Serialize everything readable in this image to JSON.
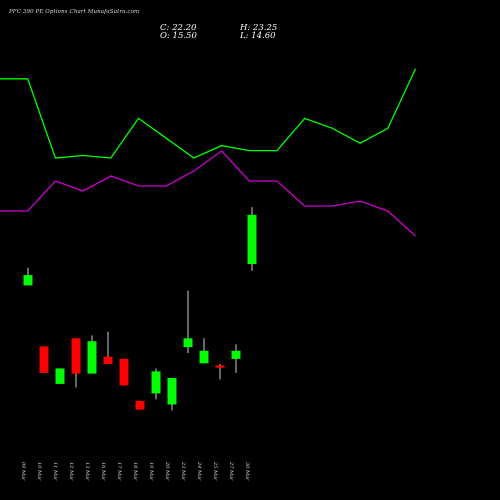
{
  "header": {
    "title": "PFC 390 PE Options Chart MunafaSutra.com",
    "close": "C: 22.20",
    "open": "O: 15.50",
    "high": "H: 23.25",
    "low": "L: 14.60"
  },
  "chart_data": {
    "type": "candlestick",
    "categories": [
      "09 Mar",
      "10 Mar",
      "11 Mar",
      "12 Mar",
      "13 Mar",
      "16 Mar",
      "17 Mar",
      "18 Mar",
      "19 Mar",
      "20 Mar",
      "23 Mar",
      "24 Mar",
      "25 Mar",
      "27 Mar",
      "30 Mar"
    ],
    "candles": [
      {
        "date": "09 Mar",
        "open": 12.6,
        "high": 15.0,
        "low": 12.6,
        "close": 14.0
      },
      {
        "date": "10 Mar",
        "open": 4.3,
        "high": 4.3,
        "low": 0.7,
        "close": 0.7
      },
      {
        "date": "11 Mar",
        "open": -0.8,
        "high": 1.3,
        "low": -0.8,
        "close": 1.3
      },
      {
        "date": "12 Mar",
        "open": 5.4,
        "high": 5.4,
        "low": -1.3,
        "close": 0.6
      },
      {
        "date": "13 Mar",
        "open": 0.6,
        "high": 5.8,
        "low": 0.6,
        "close": 5.0
      },
      {
        "date": "16 Mar",
        "open": 2.9,
        "high": 6.3,
        "low": 1.9,
        "close": 1.9
      },
      {
        "date": "17 Mar",
        "open": 2.6,
        "high": 2.6,
        "low": -1.0,
        "close": -1.0
      },
      {
        "date": "18 Mar",
        "open": -3.1,
        "high": -3.1,
        "low": -4.3,
        "close": -4.3
      },
      {
        "date": "19 Mar",
        "open": -2.1,
        "high": 1.3,
        "low": -2.9,
        "close": 0.9
      },
      {
        "date": "20 Mar",
        "open": -3.6,
        "high": 0.0,
        "low": -4.4,
        "close": 0.0
      },
      {
        "date": "23 Mar",
        "open": 4.2,
        "high": 11.9,
        "low": 3.4,
        "close": 5.4
      },
      {
        "date": "24 Mar",
        "open": 2.0,
        "high": 5.4,
        "low": 2.0,
        "close": 3.7
      },
      {
        "date": "25 Mar",
        "open": 1.7,
        "high": 1.9,
        "low": -0.2,
        "close": 1.4
      },
      {
        "date": "27 Mar",
        "open": 2.6,
        "high": 4.6,
        "low": 0.7,
        "close": 3.7
      },
      {
        "date": "30 Mar",
        "open": 15.5,
        "high": 23.25,
        "low": 14.6,
        "close": 22.2
      }
    ],
    "line_upper": {
      "color": "#00ff00",
      "values": [
        42,
        42,
        26,
        26.5,
        26,
        34,
        30,
        26,
        28.5,
        27.5,
        27.5,
        34,
        32,
        29,
        32,
        44
      ]
    },
    "line_lower": {
      "color": "#cc00cc",
      "values": [
        -1,
        -1,
        5,
        3,
        6,
        4,
        4,
        7,
        11,
        5,
        5,
        0,
        0,
        1,
        -1,
        -6
      ]
    },
    "colors": {
      "up": "#00ff00",
      "down": "#ff0000",
      "background": "#000000"
    }
  }
}
